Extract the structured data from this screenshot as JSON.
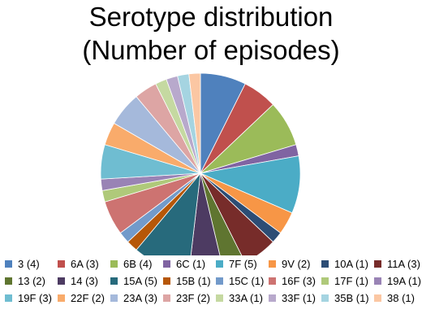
{
  "chart_data": {
    "type": "pie",
    "title_lines": [
      "Serotype distribution",
      "(Number of episodes)"
    ],
    "legend_position": "bottom",
    "slices": [
      {
        "label": "3 (4)",
        "value": 4,
        "color": "#4F81BD"
      },
      {
        "label": "6A (3)",
        "value": 3,
        "color": "#C0504D"
      },
      {
        "label": "6B (4)",
        "value": 4,
        "color": "#9BBB59"
      },
      {
        "label": "6C (1)",
        "value": 1,
        "color": "#8064A2"
      },
      {
        "label": "7F (5)",
        "value": 5,
        "color": "#4BACC6"
      },
      {
        "label": "9V (2)",
        "value": 2,
        "color": "#F79646"
      },
      {
        "label": "10A (1)",
        "value": 1,
        "color": "#2C4D75"
      },
      {
        "label": "11A (3)",
        "value": 3,
        "color": "#772C2A"
      },
      {
        "label": "13 (2)",
        "value": 2,
        "color": "#5F7530"
      },
      {
        "label": "14 (3)",
        "value": 3,
        "color": "#4D3B62"
      },
      {
        "label": "15A (5)",
        "value": 5,
        "color": "#276A7C"
      },
      {
        "label": "15B (1)",
        "value": 1,
        "color": "#B65708"
      },
      {
        "label": "15C (1)",
        "value": 1,
        "color": "#729ACA"
      },
      {
        "label": "16F (3)",
        "value": 3,
        "color": "#CD7371"
      },
      {
        "label": "17F (1)",
        "value": 1,
        "color": "#AFC97A"
      },
      {
        "label": "19A (1)",
        "value": 1,
        "color": "#9983B5"
      },
      {
        "label": "19F (3)",
        "value": 3,
        "color": "#6FBDD1"
      },
      {
        "label": "22F (2)",
        "value": 2,
        "color": "#F9AB6B"
      },
      {
        "label": "23A (3)",
        "value": 3,
        "color": "#A5B9DB"
      },
      {
        "label": "23F (2)",
        "value": 2,
        "color": "#DDA5A4"
      },
      {
        "label": "33A (1)",
        "value": 1,
        "color": "#C5D9A1"
      },
      {
        "label": "33F (1)",
        "value": 1,
        "color": "#B8A9CC"
      },
      {
        "label": "35B (1)",
        "value": 1,
        "color": "#A5D4E1"
      },
      {
        "label": "38 (1)",
        "value": 1,
        "color": "#FBC7A3"
      }
    ]
  }
}
